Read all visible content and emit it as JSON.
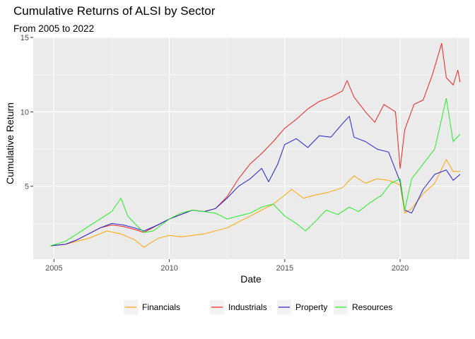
{
  "chart_data": {
    "type": "line",
    "title": "Cumulative Returns of ALSI by Sector",
    "subtitle": "From 2005 to 2022",
    "xlabel": "Date",
    "ylabel": "Cumulative Return",
    "xlim": [
      2004.1,
      2023.0
    ],
    "ylim": [
      0.1,
      15.0
    ],
    "x_ticks": [
      2005,
      2010,
      2015,
      2020
    ],
    "y_ticks": [
      5,
      10,
      15
    ],
    "grid": true,
    "legend_position": "bottom",
    "background": "#EBEBEB",
    "series": [
      {
        "name": "Financials",
        "color": "#FFA500",
        "x": [
          2004.85,
          2005.5,
          2006.5,
          2007.3,
          2007.9,
          2008.5,
          2008.9,
          2009.5,
          2010.0,
          2010.5,
          2011.5,
          2012.5,
          2013.0,
          2013.5,
          2014.0,
          2014.5,
          2015.0,
          2015.3,
          2015.8,
          2016.3,
          2016.9,
          2017.5,
          2018.0,
          2018.5,
          2019.0,
          2019.5,
          2020.0,
          2020.2,
          2020.5,
          2021.0,
          2021.5,
          2022.0,
          2022.3,
          2022.6
        ],
        "y": [
          1.0,
          1.1,
          1.5,
          2.0,
          1.8,
          1.4,
          0.9,
          1.5,
          1.7,
          1.6,
          1.8,
          2.2,
          2.6,
          3.0,
          3.4,
          3.8,
          4.4,
          4.8,
          4.2,
          4.4,
          4.6,
          4.9,
          5.7,
          5.2,
          5.5,
          5.4,
          5.1,
          3.2,
          3.5,
          4.5,
          5.2,
          6.8,
          6.0,
          6.0
        ]
      },
      {
        "name": "Industrials",
        "color": "#EE2222",
        "x": [
          2004.85,
          2005.5,
          2006.0,
          2006.5,
          2007.0,
          2007.5,
          2008.0,
          2008.5,
          2008.9,
          2009.5,
          2010.0,
          2010.5,
          2011.0,
          2011.5,
          2012.0,
          2012.5,
          2013.0,
          2013.5,
          2014.0,
          2014.5,
          2015.0,
          2015.5,
          2016.0,
          2016.5,
          2017.0,
          2017.5,
          2017.7,
          2018.0,
          2018.5,
          2018.9,
          2019.3,
          2019.8,
          2020.0,
          2020.2,
          2020.6,
          2021.0,
          2021.4,
          2021.8,
          2022.0,
          2022.3,
          2022.5,
          2022.6
        ],
        "y": [
          1.0,
          1.1,
          1.4,
          1.8,
          2.2,
          2.4,
          2.3,
          2.1,
          1.9,
          2.4,
          2.8,
          3.1,
          3.4,
          3.3,
          3.5,
          4.3,
          5.5,
          6.5,
          7.2,
          8.0,
          8.9,
          9.5,
          10.2,
          10.7,
          11.0,
          11.4,
          12.1,
          11.0,
          10.0,
          9.3,
          10.5,
          10.0,
          6.2,
          8.8,
          10.5,
          10.8,
          12.5,
          14.6,
          12.3,
          11.8,
          12.8,
          12.0
        ]
      },
      {
        "name": "Property",
        "color": "#2222CC",
        "x": [
          2004.85,
          2005.5,
          2006.0,
          2006.5,
          2007.0,
          2007.5,
          2008.0,
          2008.5,
          2008.9,
          2009.5,
          2010.0,
          2010.5,
          2011.0,
          2011.5,
          2012.0,
          2012.5,
          2013.0,
          2013.5,
          2014.0,
          2014.3,
          2014.7,
          2015.0,
          2015.5,
          2016.0,
          2016.5,
          2017.0,
          2017.5,
          2017.8,
          2018.0,
          2018.5,
          2019.0,
          2019.5,
          2020.0,
          2020.2,
          2020.5,
          2021.0,
          2021.5,
          2022.0,
          2022.3,
          2022.6
        ],
        "y": [
          1.0,
          1.1,
          1.4,
          1.8,
          2.2,
          2.5,
          2.4,
          2.2,
          2.0,
          2.4,
          2.8,
          3.1,
          3.4,
          3.3,
          3.5,
          4.2,
          5.0,
          5.5,
          6.2,
          5.3,
          6.5,
          7.8,
          8.2,
          7.6,
          8.4,
          8.3,
          9.2,
          9.7,
          8.3,
          8.0,
          7.5,
          7.3,
          5.3,
          3.4,
          3.2,
          4.8,
          5.8,
          6.1,
          5.4,
          5.8
        ]
      },
      {
        "name": "Resources",
        "color": "#22EE22",
        "x": [
          2004.85,
          2005.5,
          2006.0,
          2006.5,
          2007.0,
          2007.5,
          2007.9,
          2008.2,
          2008.5,
          2008.9,
          2009.3,
          2010.0,
          2010.5,
          2011.0,
          2011.5,
          2012.0,
          2012.5,
          2013.0,
          2013.5,
          2014.0,
          2014.5,
          2015.0,
          2015.5,
          2015.9,
          2016.3,
          2016.8,
          2017.3,
          2017.8,
          2018.2,
          2018.7,
          2019.2,
          2019.6,
          2020.0,
          2020.2,
          2020.5,
          2021.0,
          2021.5,
          2022.0,
          2022.3,
          2022.6
        ],
        "y": [
          1.0,
          1.3,
          1.8,
          2.3,
          2.8,
          3.3,
          4.2,
          3.0,
          2.5,
          1.9,
          2.0,
          2.8,
          3.2,
          3.4,
          3.3,
          3.2,
          2.8,
          3.0,
          3.2,
          3.6,
          3.8,
          3.0,
          2.5,
          2.0,
          2.6,
          3.4,
          3.1,
          3.6,
          3.3,
          3.9,
          4.4,
          5.2,
          5.5,
          3.4,
          5.5,
          6.5,
          7.5,
          10.9,
          8.0,
          8.5
        ]
      }
    ]
  }
}
